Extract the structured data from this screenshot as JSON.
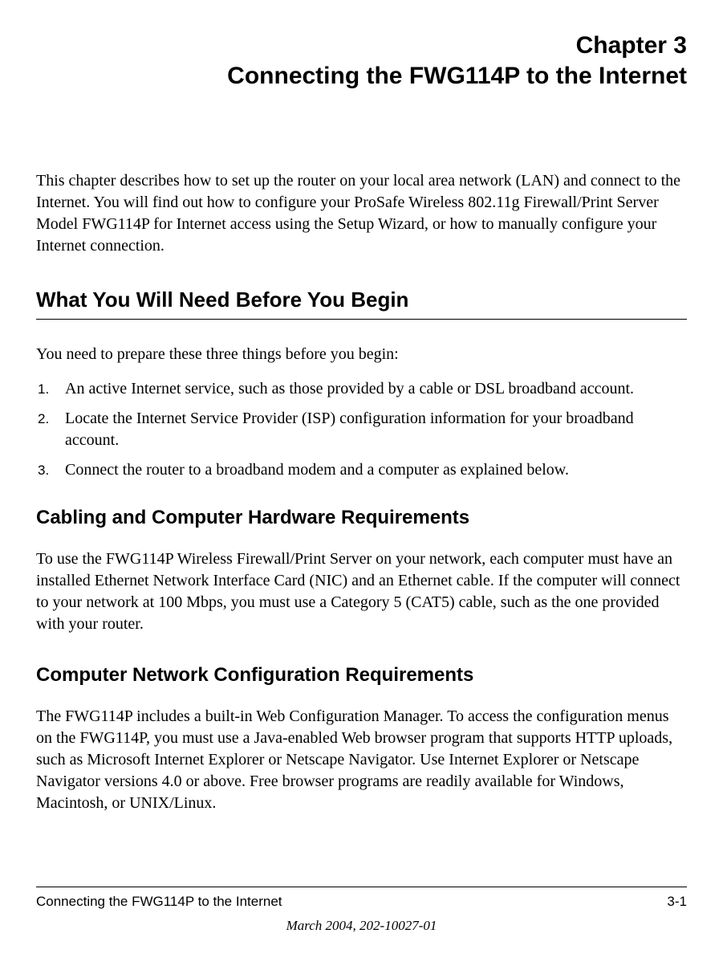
{
  "chapter": {
    "label": "Chapter 3",
    "title": "Connecting the FWG114P to the Internet"
  },
  "intro": "This chapter describes how to set up the router on your local area network (LAN) and connect to the Internet. You will find out how to configure your ProSafe Wireless 802.11g  Firewall/Print Server Model FWG114P for Internet access using the Setup Wizard, or how to manually configure your Internet connection.",
  "section1": {
    "heading": "What You Will Need Before You Begin",
    "intro": "You need to prepare these three things before you begin:",
    "items": [
      {
        "num": "1.",
        "text": "An active Internet service, such as those provided by a cable or DSL broadband account."
      },
      {
        "num": "2.",
        "text": "Locate the Internet Service Provider (ISP) configuration information for your broadband account."
      },
      {
        "num": "3.",
        "text": "Connect the router to a broadband modem and a computer as explained below."
      }
    ]
  },
  "subsection1": {
    "heading": "Cabling and Computer Hardware Requirements",
    "text": "To use the FWG114P Wireless Firewall/Print Server on your network, each computer must have an installed Ethernet Network Interface Card (NIC) and an Ethernet cable. If the computer will connect to your network at 100 Mbps, you must use a Category 5 (CAT5) cable, such as the one provided with your router."
  },
  "subsection2": {
    "heading": "Computer Network Configuration Requirements",
    "text": "The FWG114P includes a built-in Web Configuration Manager. To access the configuration menus on the FWG114P, you must use a Java-enabled Web browser program that supports HTTP uploads, such as Microsoft Internet Explorer or Netscape Navigator. Use Internet Explorer or Netscape Navigator versions 4.0 or above. Free browser programs are readily available for Windows, Macintosh, or UNIX/Linux."
  },
  "footer": {
    "title": "Connecting the FWG114P to the Internet",
    "pagenum": "3-1",
    "date": "March 2004, 202-10027-01"
  },
  "styles": {
    "background_color": "#ffffff",
    "text_color": "#000000",
    "border_color": "#000000",
    "serif_font": "Times New Roman",
    "sans_font": "Arial",
    "chapter_fontsize": 30,
    "section_heading_fontsize": 26,
    "subsection_heading_fontsize": 24,
    "body_fontsize": 20,
    "footer_fontsize": 17,
    "list_number_fontsize": 17
  }
}
